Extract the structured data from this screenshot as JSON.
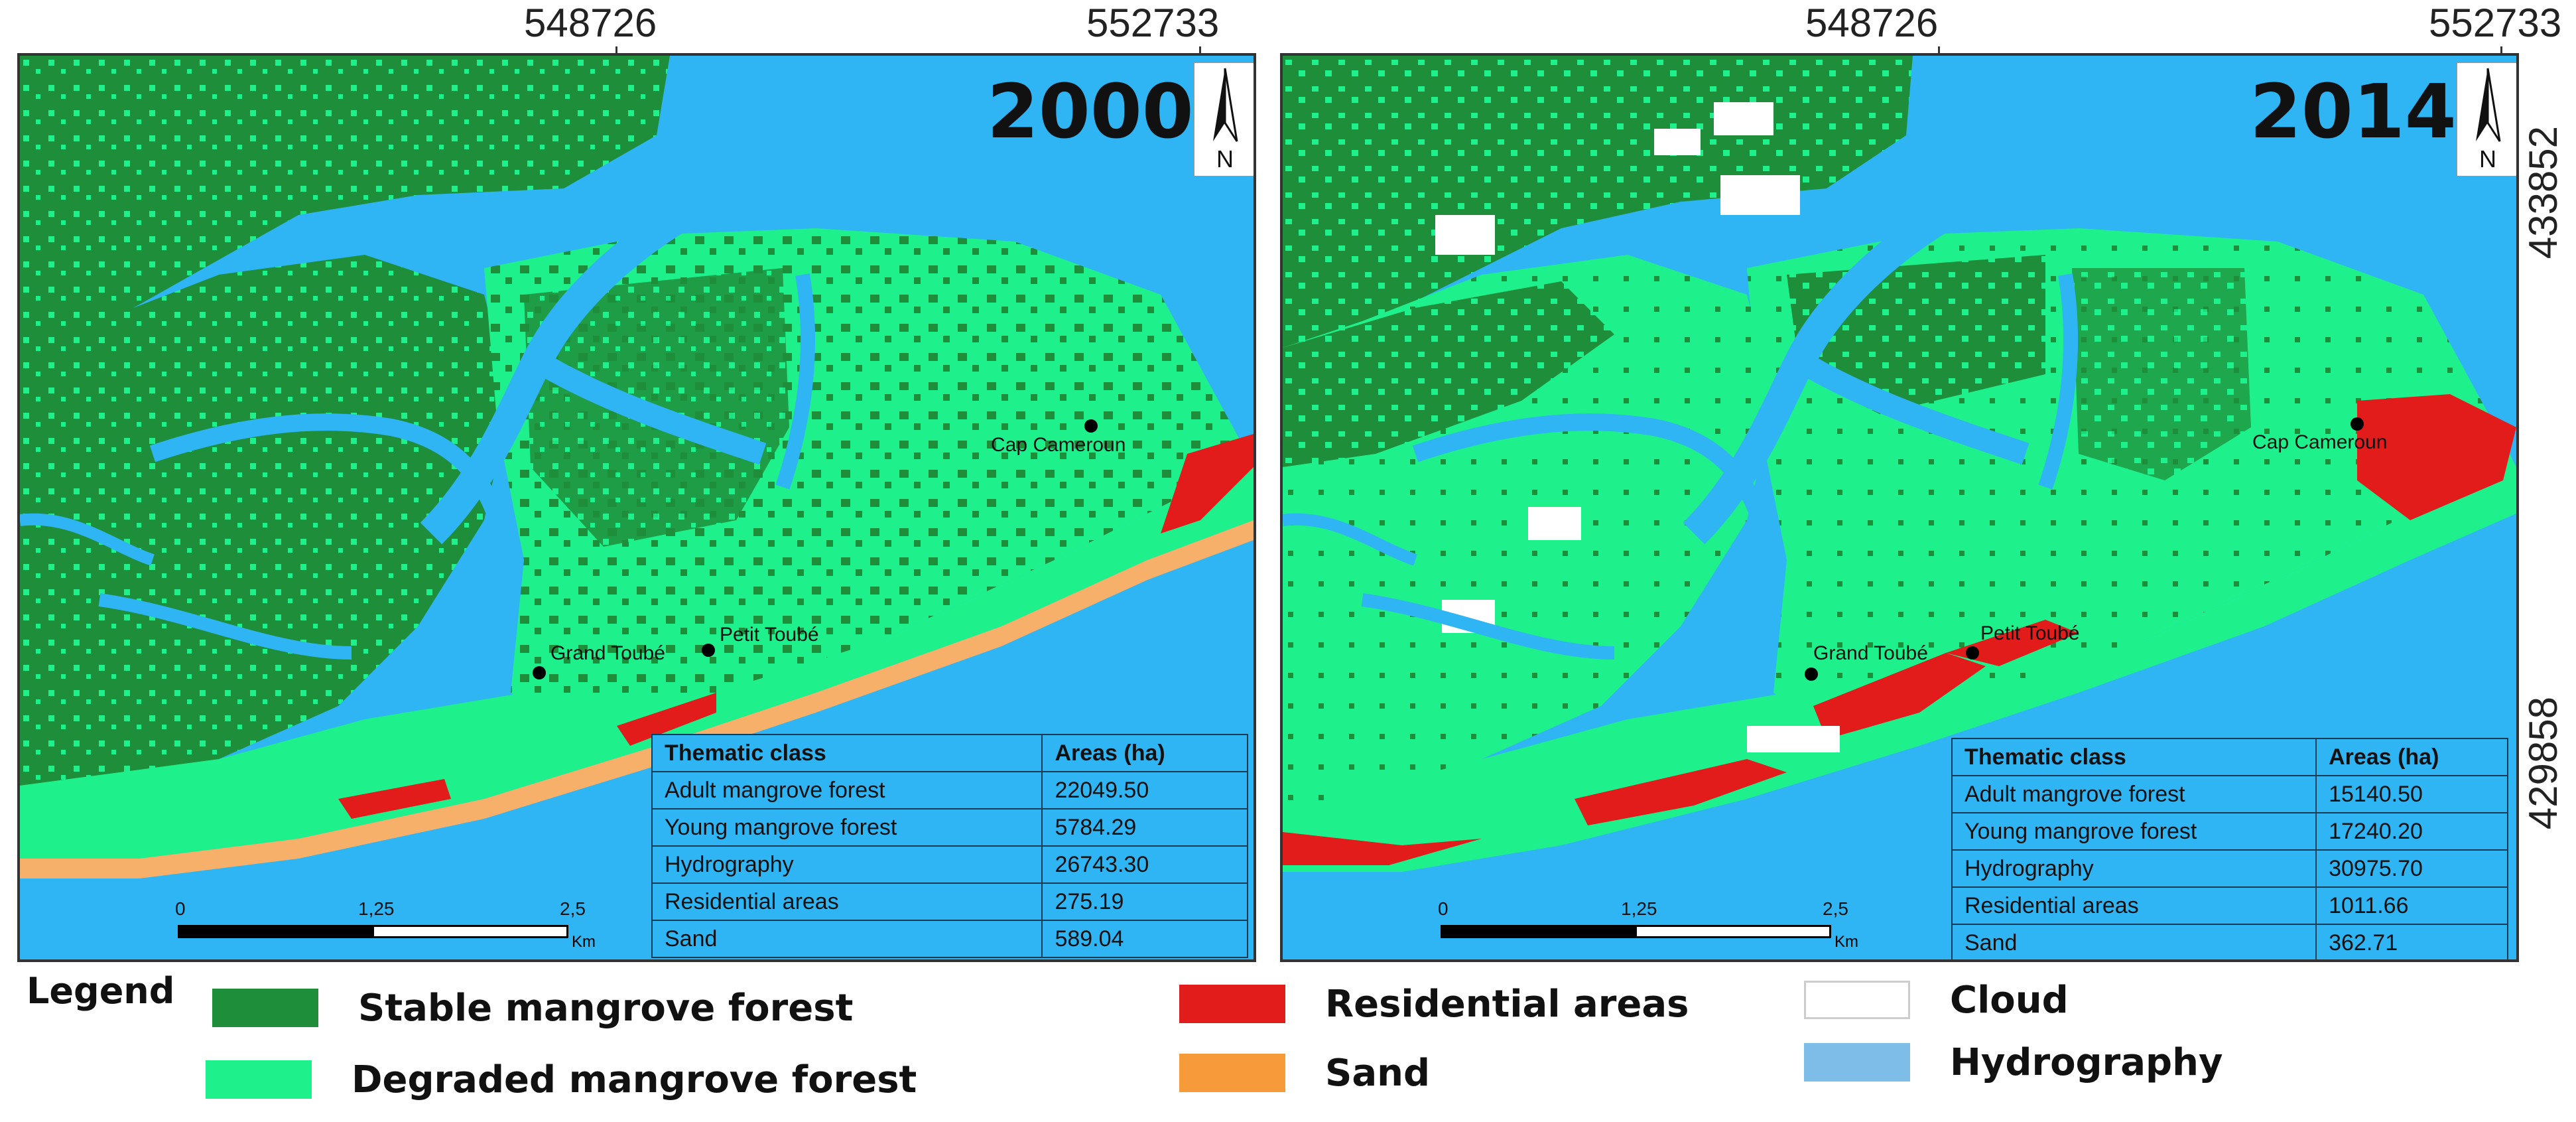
{
  "coordinates": {
    "x_ticks": [
      "548726",
      "552733"
    ],
    "y_ticks": [
      "433852",
      "429858"
    ]
  },
  "maps": [
    {
      "year": "2000",
      "north": "N",
      "places": [
        "Cap Cameroun",
        "Grand Toubé",
        "Petit Toubé"
      ],
      "table": {
        "headers": [
          "Thematic class",
          "Areas (ha)"
        ],
        "rows": [
          [
            "Adult mangrove forest",
            "22049.50"
          ],
          [
            "Young mangrove forest",
            "5784.29"
          ],
          [
            "Hydrography",
            "26743.30"
          ],
          [
            "Residential areas",
            "275.19"
          ],
          [
            "Sand",
            "589.04"
          ]
        ]
      },
      "scale": {
        "ticks": [
          "0",
          "1,25",
          "2,5"
        ],
        "unit": "Km"
      }
    },
    {
      "year": "2014",
      "north": "N",
      "places": [
        "Cap Cameroun",
        "Grand Toubé",
        "Petit Toubé"
      ],
      "table": {
        "headers": [
          "Thematic class",
          "Areas (ha)"
        ],
        "rows": [
          [
            "Adult mangrove forest",
            "15140.50"
          ],
          [
            "Young mangrove forest",
            "17240.20"
          ],
          [
            "Hydrography",
            "30975.70"
          ],
          [
            "Residential areas",
            "1011.66"
          ],
          [
            "Sand",
            "362.71"
          ]
        ]
      },
      "scale": {
        "ticks": [
          "0",
          "1,25",
          "2,5"
        ],
        "unit": "Km"
      }
    }
  ],
  "legend": {
    "title": "Legend",
    "items": [
      {
        "label": "Stable mangrove forest",
        "color": "#1f8e3a"
      },
      {
        "label": "Degraded mangrove forest",
        "color": "#1ef08c"
      },
      {
        "label": "Residential areas",
        "color": "#e21b1b"
      },
      {
        "label": "Sand",
        "color": "#f79a3a"
      },
      {
        "label": "Cloud",
        "color": "#ffffff"
      },
      {
        "label": "Hydrography",
        "color": "#7dbde8"
      }
    ]
  },
  "colors": {
    "water": "#2fb4f4",
    "stable_mangrove": "#1f8e3a",
    "degraded_mangrove": "#1ef08c",
    "residential": "#e21b1b",
    "sand": "#f7b06a",
    "cloud": "#ffffff"
  }
}
